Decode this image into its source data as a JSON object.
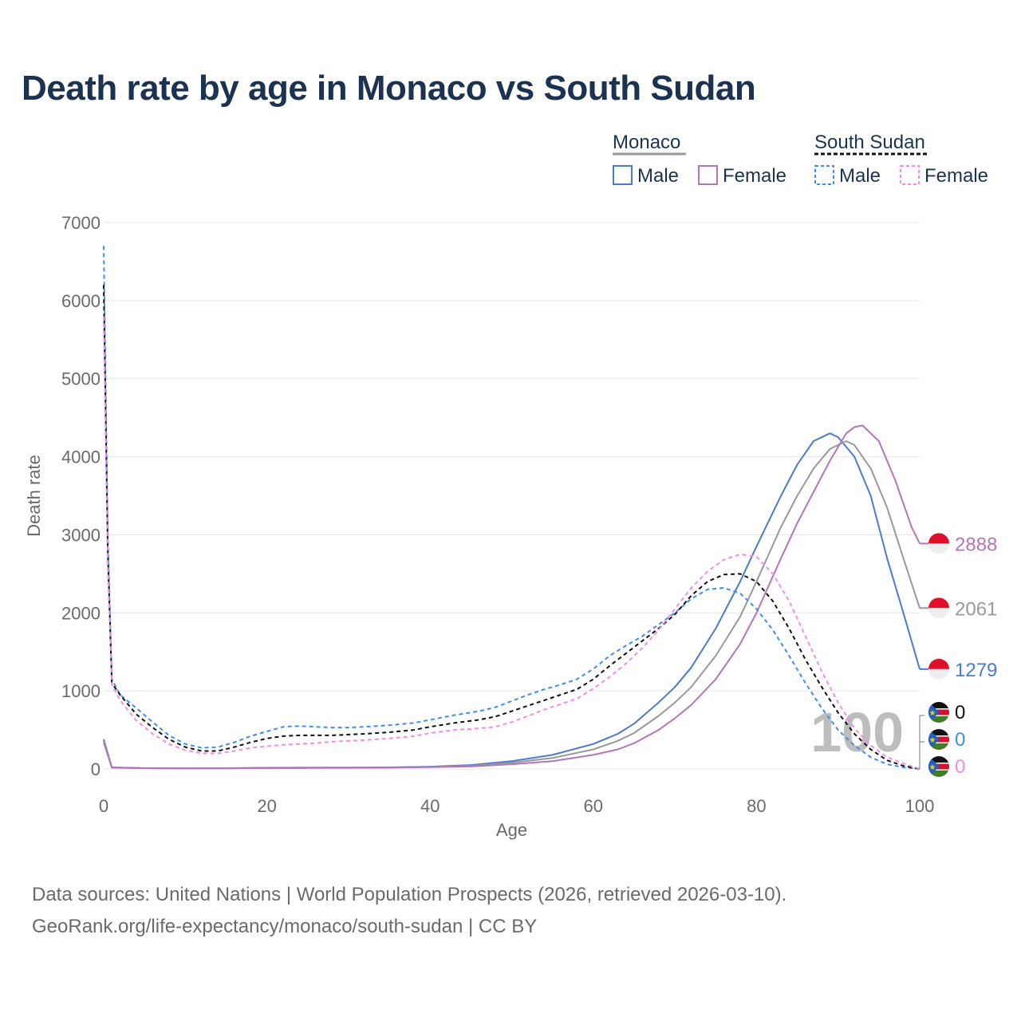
{
  "title": "Death rate by age in Monaco vs South Sudan",
  "footer": {
    "line1": "Data sources: United Nations | World Population Prospects (2026, retrieved 2026-03-10).",
    "line2": "GeoRank.org/life-expectancy/monaco/south-sudan | CC BY"
  },
  "legend": {
    "groups": [
      {
        "title": "Monaco",
        "line_color": "#999999",
        "dashed": false,
        "items": [
          {
            "label": "Male",
            "color": "#4a7bd0"
          },
          {
            "label": "Female",
            "color": "#b475b8"
          }
        ]
      },
      {
        "title": "South Sudan",
        "line_color": "#111111",
        "dashed": true,
        "items": [
          {
            "label": "Male",
            "color": "#3d8ef0"
          },
          {
            "label": "Female",
            "color": "#f58be8"
          }
        ]
      }
    ]
  },
  "watermark": "100",
  "chart_data": {
    "type": "line",
    "title": "Death rate by age in Monaco vs South Sudan",
    "xlabel": "Age",
    "ylabel": "Death rate",
    "xlim": [
      0,
      100
    ],
    "ylim": [
      0,
      7000
    ],
    "xticks": [
      0,
      20,
      40,
      60,
      80,
      100
    ],
    "yticks": [
      0,
      1000,
      2000,
      3000,
      4000,
      5000,
      6000,
      7000
    ],
    "grid": true,
    "series": [
      {
        "name": "Monaco Male",
        "country": "Monaco",
        "sex": "Male",
        "color": "#4a7bd0",
        "dashed": false,
        "end_label": "1279",
        "flag": "monaco",
        "points": [
          [
            0,
            380
          ],
          [
            1,
            20
          ],
          [
            5,
            10
          ],
          [
            10,
            8
          ],
          [
            15,
            10
          ],
          [
            20,
            15
          ],
          [
            25,
            18
          ],
          [
            30,
            18
          ],
          [
            35,
            20
          ],
          [
            40,
            30
          ],
          [
            45,
            50
          ],
          [
            50,
            100
          ],
          [
            55,
            180
          ],
          [
            60,
            320
          ],
          [
            63,
            450
          ],
          [
            65,
            580
          ],
          [
            68,
            850
          ],
          [
            70,
            1050
          ],
          [
            72,
            1300
          ],
          [
            75,
            1800
          ],
          [
            78,
            2400
          ],
          [
            80,
            2850
          ],
          [
            83,
            3500
          ],
          [
            85,
            3900
          ],
          [
            87,
            4200
          ],
          [
            89,
            4300
          ],
          [
            90,
            4250
          ],
          [
            92,
            4000
          ],
          [
            94,
            3500
          ],
          [
            96,
            2700
          ],
          [
            98,
            2000
          ],
          [
            100,
            1279
          ]
        ]
      },
      {
        "name": "Monaco Both",
        "country": "Monaco",
        "sex": "Both",
        "color": "#999999",
        "dashed": false,
        "end_label": "2061",
        "flag": "monaco",
        "points": [
          [
            0,
            360
          ],
          [
            1,
            18
          ],
          [
            5,
            10
          ],
          [
            10,
            8
          ],
          [
            15,
            9
          ],
          [
            20,
            12
          ],
          [
            25,
            15
          ],
          [
            30,
            17
          ],
          [
            35,
            19
          ],
          [
            40,
            26
          ],
          [
            45,
            40
          ],
          [
            50,
            80
          ],
          [
            55,
            140
          ],
          [
            60,
            250
          ],
          [
            63,
            360
          ],
          [
            65,
            460
          ],
          [
            68,
            680
          ],
          [
            70,
            850
          ],
          [
            72,
            1050
          ],
          [
            75,
            1450
          ],
          [
            78,
            1950
          ],
          [
            80,
            2400
          ],
          [
            83,
            3100
          ],
          [
            85,
            3500
          ],
          [
            87,
            3850
          ],
          [
            89,
            4100
          ],
          [
            91,
            4200
          ],
          [
            92,
            4150
          ],
          [
            94,
            3850
          ],
          [
            96,
            3350
          ],
          [
            98,
            2700
          ],
          [
            100,
            2061
          ]
        ]
      },
      {
        "name": "Monaco Female",
        "country": "Monaco",
        "sex": "Female",
        "color": "#b475b8",
        "dashed": false,
        "end_label": "2888",
        "flag": "monaco",
        "points": [
          [
            0,
            340
          ],
          [
            1,
            16
          ],
          [
            5,
            9
          ],
          [
            10,
            7
          ],
          [
            15,
            8
          ],
          [
            20,
            10
          ],
          [
            25,
            12
          ],
          [
            30,
            14
          ],
          [
            35,
            16
          ],
          [
            40,
            22
          ],
          [
            45,
            32
          ],
          [
            50,
            60
          ],
          [
            55,
            100
          ],
          [
            60,
            180
          ],
          [
            63,
            250
          ],
          [
            65,
            330
          ],
          [
            68,
            500
          ],
          [
            70,
            650
          ],
          [
            72,
            820
          ],
          [
            75,
            1150
          ],
          [
            78,
            1600
          ],
          [
            80,
            2000
          ],
          [
            83,
            2700
          ],
          [
            85,
            3150
          ],
          [
            87,
            3550
          ],
          [
            89,
            3950
          ],
          [
            91,
            4300
          ],
          [
            92,
            4380
          ],
          [
            93,
            4400
          ],
          [
            95,
            4200
          ],
          [
            97,
            3700
          ],
          [
            99,
            3100
          ],
          [
            100,
            2888
          ]
        ]
      },
      {
        "name": "South Sudan Male",
        "country": "South Sudan",
        "sex": "Male",
        "color": "#3d8ef0",
        "dashed": true,
        "end_label": "0",
        "flag": "south-sudan",
        "points": [
          [
            0,
            6700
          ],
          [
            0.5,
            3000
          ],
          [
            1,
            1150
          ],
          [
            2,
            950
          ],
          [
            4,
            780
          ],
          [
            6,
            600
          ],
          [
            8,
            430
          ],
          [
            10,
            320
          ],
          [
            12,
            270
          ],
          [
            14,
            280
          ],
          [
            16,
            340
          ],
          [
            18,
            420
          ],
          [
            20,
            480
          ],
          [
            22,
            540
          ],
          [
            24,
            550
          ],
          [
            26,
            540
          ],
          [
            28,
            530
          ],
          [
            30,
            530
          ],
          [
            32,
            540
          ],
          [
            35,
            560
          ],
          [
            38,
            590
          ],
          [
            40,
            630
          ],
          [
            43,
            690
          ],
          [
            46,
            740
          ],
          [
            48,
            790
          ],
          [
            50,
            870
          ],
          [
            52,
            950
          ],
          [
            54,
            1020
          ],
          [
            56,
            1080
          ],
          [
            58,
            1150
          ],
          [
            60,
            1280
          ],
          [
            62,
            1450
          ],
          [
            64,
            1580
          ],
          [
            66,
            1700
          ],
          [
            68,
            1850
          ],
          [
            70,
            2000
          ],
          [
            72,
            2180
          ],
          [
            74,
            2300
          ],
          [
            76,
            2320
          ],
          [
            78,
            2250
          ],
          [
            80,
            2050
          ],
          [
            82,
            1780
          ],
          [
            84,
            1450
          ],
          [
            86,
            1100
          ],
          [
            88,
            780
          ],
          [
            90,
            500
          ],
          [
            92,
            300
          ],
          [
            94,
            150
          ],
          [
            96,
            60
          ],
          [
            98,
            20
          ],
          [
            100,
            0
          ]
        ]
      },
      {
        "name": "South Sudan Both",
        "country": "South Sudan",
        "sex": "Both",
        "color": "#111111",
        "dashed": true,
        "end_label": "0",
        "flag": "south-sudan",
        "points": [
          [
            0,
            6200
          ],
          [
            0.5,
            2800
          ],
          [
            1,
            1100
          ],
          [
            2,
            950
          ],
          [
            4,
            700
          ],
          [
            6,
            530
          ],
          [
            8,
            380
          ],
          [
            10,
            280
          ],
          [
            12,
            230
          ],
          [
            14,
            230
          ],
          [
            16,
            280
          ],
          [
            18,
            340
          ],
          [
            20,
            390
          ],
          [
            22,
            420
          ],
          [
            24,
            430
          ],
          [
            26,
            430
          ],
          [
            28,
            430
          ],
          [
            30,
            440
          ],
          [
            32,
            450
          ],
          [
            35,
            470
          ],
          [
            38,
            500
          ],
          [
            40,
            540
          ],
          [
            43,
            590
          ],
          [
            46,
            630
          ],
          [
            48,
            670
          ],
          [
            50,
            740
          ],
          [
            52,
            810
          ],
          [
            54,
            880
          ],
          [
            56,
            950
          ],
          [
            58,
            1020
          ],
          [
            60,
            1150
          ],
          [
            62,
            1320
          ],
          [
            64,
            1480
          ],
          [
            66,
            1640
          ],
          [
            68,
            1800
          ],
          [
            70,
            1980
          ],
          [
            72,
            2220
          ],
          [
            74,
            2400
          ],
          [
            76,
            2490
          ],
          [
            78,
            2500
          ],
          [
            80,
            2400
          ],
          [
            82,
            2150
          ],
          [
            84,
            1800
          ],
          [
            86,
            1400
          ],
          [
            88,
            1050
          ],
          [
            90,
            720
          ],
          [
            92,
            450
          ],
          [
            94,
            250
          ],
          [
            96,
            110
          ],
          [
            98,
            40
          ],
          [
            100,
            0
          ]
        ]
      },
      {
        "name": "South Sudan Female",
        "country": "South Sudan",
        "sex": "Female",
        "color": "#f58be8",
        "dashed": true,
        "end_label": "0",
        "flag": "south-sudan",
        "points": [
          [
            0,
            5800
          ],
          [
            0.5,
            2600
          ],
          [
            1,
            1080
          ],
          [
            2,
            880
          ],
          [
            4,
            620
          ],
          [
            6,
            450
          ],
          [
            8,
            320
          ],
          [
            10,
            240
          ],
          [
            12,
            200
          ],
          [
            14,
            200
          ],
          [
            16,
            230
          ],
          [
            18,
            270
          ],
          [
            20,
            290
          ],
          [
            22,
            310
          ],
          [
            24,
            320
          ],
          [
            26,
            330
          ],
          [
            28,
            350
          ],
          [
            30,
            360
          ],
          [
            32,
            370
          ],
          [
            35,
            390
          ],
          [
            38,
            420
          ],
          [
            40,
            460
          ],
          [
            43,
            500
          ],
          [
            46,
            520
          ],
          [
            48,
            540
          ],
          [
            50,
            600
          ],
          [
            52,
            680
          ],
          [
            54,
            760
          ],
          [
            56,
            830
          ],
          [
            58,
            900
          ],
          [
            60,
            1030
          ],
          [
            62,
            1180
          ],
          [
            64,
            1350
          ],
          [
            66,
            1550
          ],
          [
            68,
            1780
          ],
          [
            70,
            2050
          ],
          [
            72,
            2320
          ],
          [
            74,
            2530
          ],
          [
            76,
            2680
          ],
          [
            78,
            2750
          ],
          [
            80,
            2720
          ],
          [
            82,
            2500
          ],
          [
            84,
            2150
          ],
          [
            86,
            1700
          ],
          [
            88,
            1250
          ],
          [
            90,
            850
          ],
          [
            92,
            520
          ],
          [
            94,
            300
          ],
          [
            96,
            150
          ],
          [
            98,
            70
          ],
          [
            100,
            0
          ]
        ]
      }
    ]
  }
}
